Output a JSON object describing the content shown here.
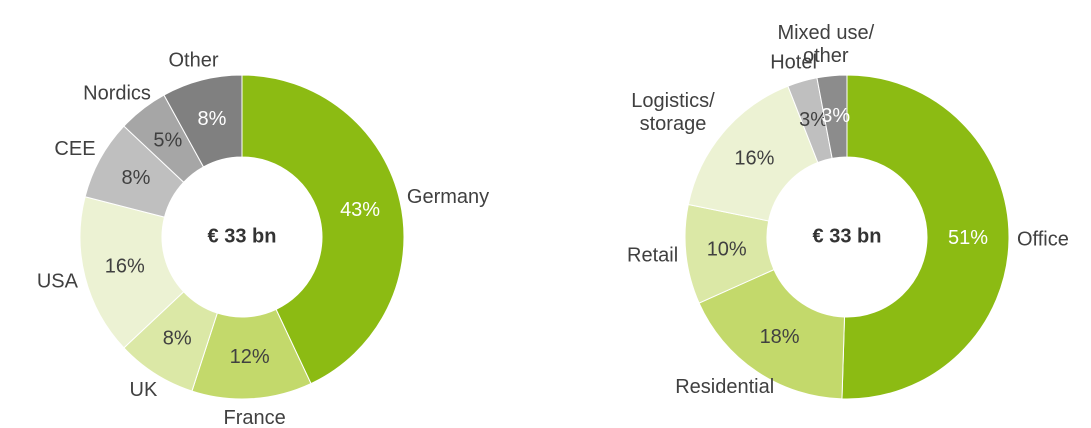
{
  "chart_data": [
    {
      "type": "donut",
      "center_label": "€ 33 bn",
      "categories": [
        "Germany",
        "France",
        "UK",
        "USA",
        "CEE",
        "Nordics",
        "Other"
      ],
      "values": [
        43,
        12,
        8,
        16,
        8,
        5,
        8
      ],
      "value_labels": [
        "43%",
        "12%",
        "8%",
        "16%",
        "8%",
        "5%",
        "8%"
      ],
      "colors": [
        "#8cbb13",
        "#c3d96b",
        "#dbe8a6",
        "#ecf2d3",
        "#bfbfbf",
        "#a6a6a6",
        "#808080"
      ]
    },
    {
      "type": "donut",
      "center_label": "€ 33 bn",
      "categories": [
        "Office",
        "Residential",
        "Retail",
        "Logistics/ storage",
        "Hotel",
        "Mixed use/ other"
      ],
      "values": [
        51,
        18,
        10,
        16,
        3,
        3
      ],
      "value_labels": [
        "51%",
        "18%",
        "10%",
        "16%",
        "3%",
        "3%"
      ],
      "colors": [
        "#8cbb13",
        "#c3d96b",
        "#dbe8a6",
        "#ecf2d3",
        "#bfbfbf",
        "#8c8c8c"
      ]
    }
  ]
}
